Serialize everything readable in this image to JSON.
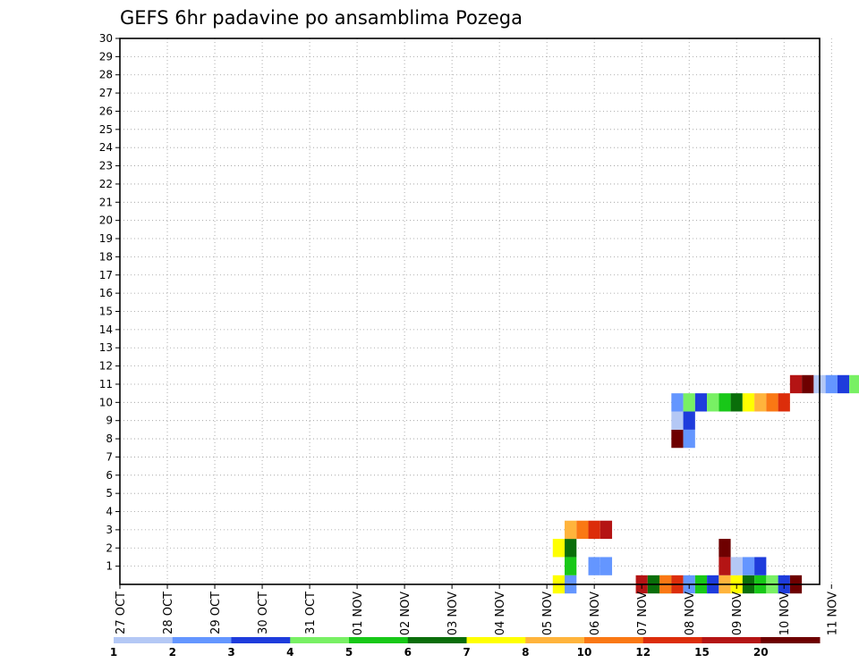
{
  "chart_data": {
    "type": "heatmap",
    "title": "GEFS 6hr padavine po ansamblima Pozega",
    "xlabel": "",
    "ylabel": "",
    "y_ticks": [
      "1",
      "2",
      "3",
      "4",
      "5",
      "6",
      "7",
      "8",
      "9",
      "10",
      "11",
      "12",
      "13",
      "14",
      "15",
      "16",
      "17",
      "18",
      "19",
      "20",
      "21",
      "22",
      "23",
      "24",
      "25",
      "26",
      "27",
      "28",
      "29",
      "30"
    ],
    "x_ticks": [
      "27 OCT",
      "28 OCT",
      "29 OCT",
      "30 OCT",
      "31 OCT",
      "01 NOV",
      "02 NOV",
      "03 NOV",
      "04 NOV",
      "05 NOV",
      "06 NOV",
      "07 NOV",
      "08 NOV",
      "09 NOV",
      "10 NOV",
      "11 NOV"
    ],
    "x_unit": "6-hour steps from 27 OCT 00Z (4 per day)",
    "y_unit": "ensemble member (0 = control)",
    "xlim": [
      0,
      60
    ],
    "ylim": [
      0,
      30
    ],
    "grid": true,
    "colorbar": {
      "labels": [
        "1",
        "2",
        "3",
        "4",
        "5",
        "6",
        "7",
        "8",
        "10",
        "12",
        "15",
        "20"
      ],
      "colors": [
        "#b4c8f5",
        "#6496ff",
        "#1e3cdc",
        "#78f064",
        "#18c818",
        "#0a6e0a",
        "#ffff00",
        "#ffb43c",
        "#fa7814",
        "#dc2d0a",
        "#b41414",
        "#6e0000"
      ]
    },
    "cells": [
      [
        38,
        0,
        1
      ],
      [
        37,
        0,
        6
      ],
      [
        46,
        0,
        3
      ],
      [
        44,
        0,
        10
      ],
      [
        45,
        0,
        5
      ],
      [
        46,
        0,
        8
      ],
      [
        47,
        0,
        9
      ],
      [
        48,
        0,
        1
      ],
      [
        49,
        0,
        4
      ],
      [
        50,
        0,
        2
      ],
      [
        51,
        0,
        7
      ],
      [
        52,
        0,
        6
      ],
      [
        53,
        0,
        5
      ],
      [
        54,
        0,
        4
      ],
      [
        55,
        0,
        3
      ],
      [
        56,
        0,
        2
      ],
      [
        51,
        1,
        10
      ],
      [
        51,
        2,
        11
      ],
      [
        41,
        1,
        1
      ],
      [
        40,
        1,
        1
      ],
      [
        52,
        1,
        12
      ],
      [
        53,
        1,
        13
      ],
      [
        54,
        1,
        14
      ],
      [
        57,
        0,
        11
      ],
      [
        38,
        1,
        4
      ],
      [
        38,
        2,
        5
      ],
      [
        37,
        2,
        6
      ],
      [
        38,
        3,
        7
      ],
      [
        39,
        3,
        8
      ],
      [
        40,
        3,
        9
      ],
      [
        41,
        3,
        10
      ],
      [
        47,
        8,
        11
      ],
      [
        48,
        8,
        1
      ],
      [
        47,
        9,
        12
      ],
      [
        48,
        9,
        2
      ],
      [
        47,
        10,
        13
      ],
      [
        48,
        10,
        3
      ],
      [
        49,
        10,
        14
      ],
      [
        50,
        10,
        15
      ],
      [
        51,
        10,
        16
      ],
      [
        52,
        10,
        17
      ],
      [
        53,
        10,
        18
      ],
      [
        54,
        10,
        19
      ],
      [
        55,
        10,
        20
      ],
      [
        56,
        10,
        21
      ],
      [
        57,
        11,
        22
      ],
      [
        58,
        11,
        23
      ],
      [
        59,
        11,
        24
      ],
      [
        60,
        11,
        25
      ],
      [
        61,
        11,
        26
      ],
      [
        62,
        11,
        27
      ],
      [
        63,
        11,
        28
      ],
      [
        64,
        11,
        29
      ],
      [
        65,
        11,
        30
      ],
      [
        65,
        12,
        0
      ],
      [
        65,
        13,
        1
      ],
      [
        65,
        14,
        2
      ]
    ]
  }
}
